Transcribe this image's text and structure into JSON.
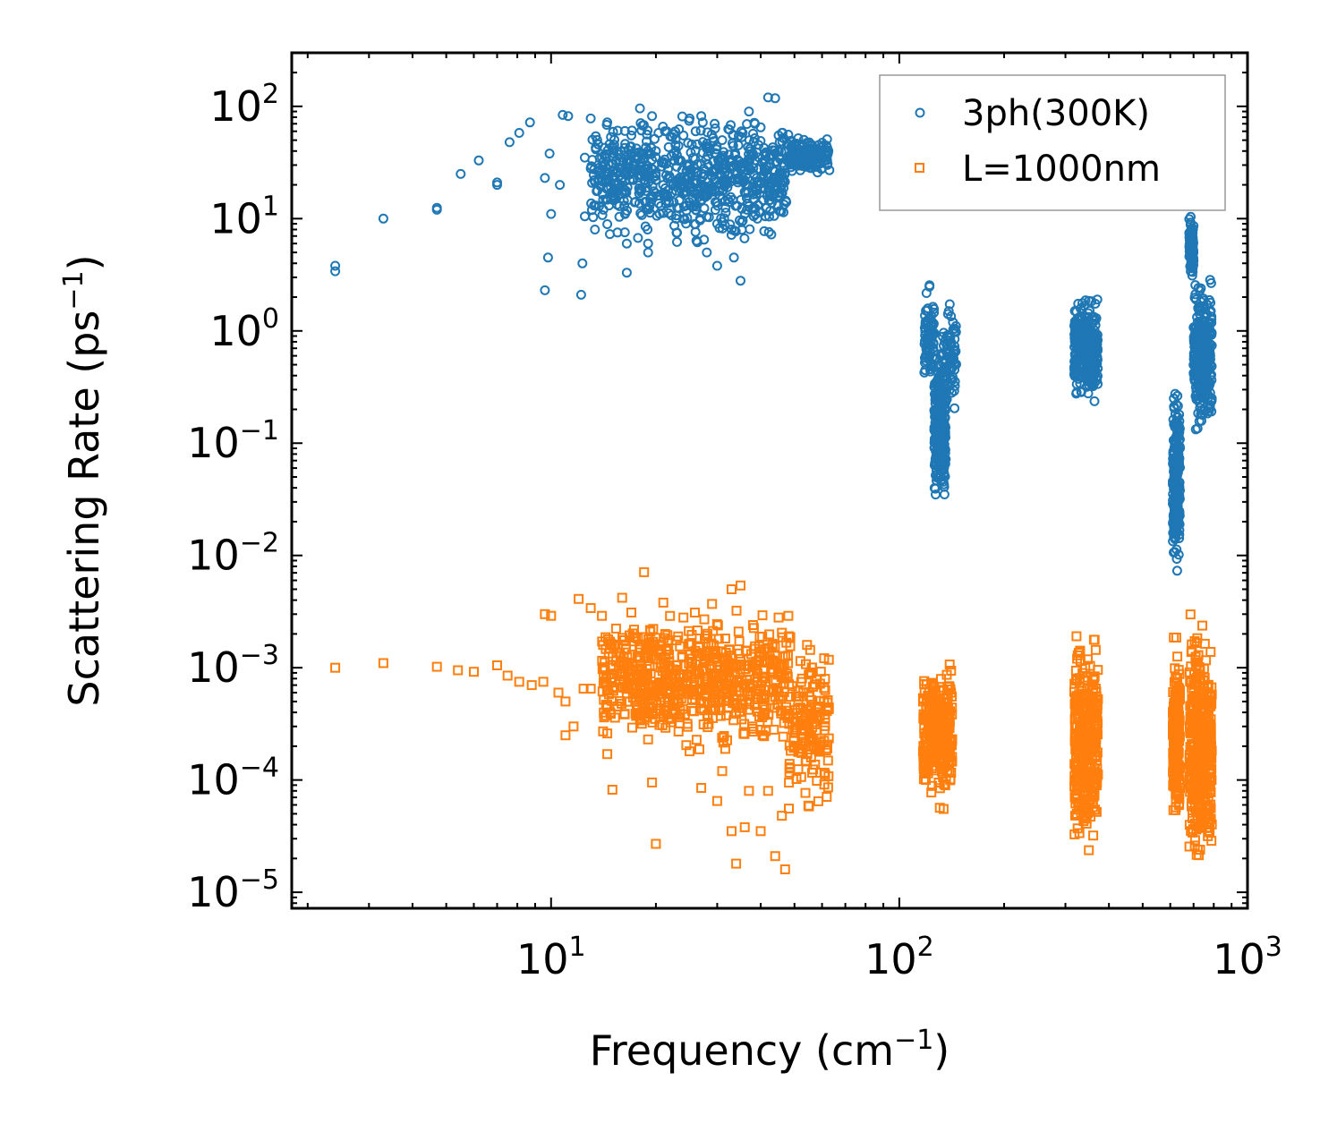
{
  "chart_data": {
    "type": "scatter",
    "xscale": "log",
    "yscale": "log",
    "xlim": [
      1.8,
      1000
    ],
    "ylim": [
      7.2e-06,
      300
    ],
    "xlabel": {
      "base": "Frequency (cm",
      "sup": "−1",
      "tail": ")"
    },
    "ylabel": {
      "base": "Scattering Rate (ps",
      "sup": "−1",
      "tail": ")"
    },
    "xticks": [
      {
        "base": "10",
        "exp": "1",
        "value": 10
      },
      {
        "base": "10",
        "exp": "2",
        "value": 100
      },
      {
        "base": "10",
        "exp": "3",
        "value": 1000
      }
    ],
    "yticks": [
      {
        "base": "10",
        "exp": "2",
        "value": 100
      },
      {
        "base": "10",
        "exp": "1",
        "value": 10
      },
      {
        "base": "10",
        "exp": "0",
        "value": 1
      },
      {
        "base": "10",
        "exp": "−1",
        "value": 0.1
      },
      {
        "base": "10",
        "exp": "−2",
        "value": 0.01
      },
      {
        "base": "10",
        "exp": "−3",
        "value": 0.001
      },
      {
        "base": "10",
        "exp": "−4",
        "value": 0.0001
      },
      {
        "base": "10",
        "exp": "−5",
        "value": 1e-05
      }
    ],
    "legend_position": "top-right",
    "series": [
      {
        "name": "3ph(300K)",
        "marker": "circle",
        "color": "#1f77b4",
        "points": [
          [
            2.4,
            3.8
          ],
          [
            2.4,
            3.4
          ],
          [
            3.3,
            10
          ],
          [
            4.7,
            12.5
          ],
          [
            4.7,
            12
          ],
          [
            5.5,
            25
          ],
          [
            6.2,
            33
          ],
          [
            7,
            20
          ],
          [
            7,
            21
          ],
          [
            7.6,
            48
          ],
          [
            8.1,
            58
          ],
          [
            8.7,
            72
          ],
          [
            9.6,
            23
          ],
          [
            9.6,
            2.3
          ],
          [
            9.8,
            4.5
          ],
          [
            9.9,
            38
          ],
          [
            10,
            11
          ],
          [
            10.6,
            20
          ],
          [
            10.8,
            84
          ],
          [
            11.2,
            82
          ],
          [
            12.2,
            2.1
          ],
          [
            12.3,
            4
          ],
          [
            12.5,
            10.5
          ],
          [
            12.5,
            35
          ],
          [
            13,
            78
          ],
          [
            13,
            28
          ],
          [
            14,
            22
          ],
          [
            14,
            35
          ],
          [
            14.5,
            72
          ],
          [
            15,
            44
          ],
          [
            15.5,
            20
          ],
          [
            16,
            28
          ],
          [
            16.5,
            3.3
          ],
          [
            16.5,
            6
          ],
          [
            17,
            55
          ],
          [
            17,
            38
          ],
          [
            17.5,
            30
          ],
          [
            18,
            96
          ],
          [
            18,
            18
          ],
          [
            19,
            5
          ],
          [
            19,
            6
          ],
          [
            19.5,
            82
          ],
          [
            20,
            40
          ],
          [
            20,
            24
          ],
          [
            21,
            32
          ],
          [
            21.5,
            60
          ],
          [
            22,
            54
          ],
          [
            22.5,
            14
          ],
          [
            23,
            7.5
          ],
          [
            23,
            6.2
          ],
          [
            24,
            55
          ],
          [
            25,
            30
          ],
          [
            25,
            78
          ],
          [
            26,
            12
          ],
          [
            26,
            60
          ],
          [
            27,
            82
          ],
          [
            27.5,
            6.5
          ],
          [
            28,
            42
          ],
          [
            28,
            5
          ],
          [
            29,
            26
          ],
          [
            29.5,
            70
          ],
          [
            30,
            9
          ],
          [
            30,
            3.8
          ],
          [
            31,
            50
          ],
          [
            31,
            15
          ],
          [
            32,
            22
          ],
          [
            32.5,
            62
          ],
          [
            33,
            8
          ],
          [
            33.5,
            4.5
          ],
          [
            34,
            30
          ],
          [
            34.5,
            45
          ],
          [
            35,
            2.8
          ],
          [
            35.5,
            58
          ],
          [
            36,
            22
          ],
          [
            36.5,
            12
          ],
          [
            37,
            90
          ],
          [
            38,
            38
          ],
          [
            38.5,
            70
          ],
          [
            39,
            18
          ],
          [
            40,
            65
          ],
          [
            41,
            28
          ],
          [
            42,
            120
          ],
          [
            43,
            36
          ],
          [
            44,
            118
          ],
          [
            45,
            55
          ],
          [
            46,
            25
          ],
          [
            47,
            40
          ],
          [
            48,
            56
          ],
          [
            50,
            42
          ],
          [
            53,
            44
          ],
          [
            55,
            35
          ],
          [
            58,
            30
          ],
          [
            60,
            28
          ],
          [
            62,
            36
          ],
          [
            63,
            27
          ]
        ],
        "clusters": [
          {
            "fmin": 13,
            "fmax": 48,
            "ymin": 5,
            "ymax": 100,
            "n": 700
          },
          {
            "fmin": 48,
            "fmax": 63,
            "ymin": 22,
            "ymax": 60,
            "n": 140
          },
          {
            "fmin": 118,
            "fmax": 126,
            "ymin": 0.25,
            "ymax": 3,
            "n": 90
          },
          {
            "fmin": 126,
            "fmax": 136,
            "ymin": 0.02,
            "ymax": 1,
            "n": 260
          },
          {
            "fmin": 133,
            "fmax": 146,
            "ymin": 0.15,
            "ymax": 2.5,
            "n": 80
          },
          {
            "fmin": 318,
            "fmax": 372,
            "ymin": 0.2,
            "ymax": 2.4,
            "n": 320
          },
          {
            "fmin": 610,
            "fmax": 640,
            "ymin": 0.0055,
            "ymax": 0.5,
            "n": 220
          },
          {
            "fmin": 680,
            "fmax": 700,
            "ymin": 2.5,
            "ymax": 11.5,
            "n": 110
          },
          {
            "fmin": 700,
            "fmax": 790,
            "ymin": 0.09,
            "ymax": 4,
            "n": 300
          }
        ]
      },
      {
        "name": "L=1000nm",
        "marker": "square",
        "color": "#ff7f0e",
        "points": [
          [
            2.4,
            0.001
          ],
          [
            3.3,
            0.0011
          ],
          [
            4.7,
            0.00102
          ],
          [
            5.4,
            0.00095
          ],
          [
            6,
            0.00092
          ],
          [
            7,
            0.00105
          ],
          [
            7.5,
            0.00085
          ],
          [
            8.1,
            0.00075
          ],
          [
            8.8,
            0.0007
          ],
          [
            9.5,
            0.00075
          ],
          [
            9.6,
            0.003
          ],
          [
            10,
            0.0029
          ],
          [
            10.5,
            0.0006
          ],
          [
            11,
            0.0005
          ],
          [
            11,
            0.00025
          ],
          [
            11.6,
            0.0003
          ],
          [
            12,
            0.0041
          ],
          [
            12.4,
            0.00065
          ],
          [
            13,
            0.0034
          ],
          [
            13,
            0.00065
          ],
          [
            14,
            0.0029
          ],
          [
            14.5,
            0.00026
          ],
          [
            14.5,
            0.00017
          ],
          [
            15,
            8.2e-05
          ],
          [
            15.5,
            0.00045
          ],
          [
            16,
            0.0042
          ],
          [
            17,
            0.0031
          ],
          [
            18,
            0.00035
          ],
          [
            18.5,
            0.0071
          ],
          [
            19,
            0.00023
          ],
          [
            19.5,
            9.5e-05
          ],
          [
            20,
            2.7e-05
          ],
          [
            21,
            0.0038
          ],
          [
            22,
            0.00035
          ],
          [
            24,
            0.0028
          ],
          [
            25,
            0.00018
          ],
          [
            27,
            8.5e-05
          ],
          [
            29,
            0.0037
          ],
          [
            30,
            6.5e-05
          ],
          [
            31,
            0.00012
          ],
          [
            33,
            0.005
          ],
          [
            33,
            3.5e-05
          ],
          [
            34,
            1.8e-05
          ],
          [
            35,
            0.0054
          ],
          [
            36,
            3.8e-05
          ],
          [
            37,
            8e-05
          ],
          [
            38,
            0.0024
          ],
          [
            40,
            3.5e-05
          ],
          [
            42,
            8e-05
          ],
          [
            44,
            2.1e-05
          ],
          [
            45,
            0.0028
          ],
          [
            46,
            4.8e-05
          ],
          [
            47,
            1.6e-05
          ],
          [
            48,
            0.0029
          ]
        ],
        "clusters": [
          {
            "fmin": 14,
            "fmax": 48,
            "ymin": 0.00015,
            "ymax": 0.004,
            "n": 700
          },
          {
            "fmin": 48,
            "fmax": 63,
            "ymin": 4e-05,
            "ymax": 0.0025,
            "n": 160
          },
          {
            "fmin": 117,
            "fmax": 142,
            "ymin": 5e-05,
            "ymax": 0.0013,
            "n": 300
          },
          {
            "fmin": 318,
            "fmax": 372,
            "ymin": 1.5e-05,
            "ymax": 0.003,
            "n": 360
          },
          {
            "fmin": 610,
            "fmax": 640,
            "ymin": 3e-05,
            "ymax": 0.002,
            "n": 200
          },
          {
            "fmin": 680,
            "fmax": 790,
            "ymin": 1.2e-05,
            "ymax": 0.004,
            "n": 400
          }
        ]
      }
    ]
  }
}
